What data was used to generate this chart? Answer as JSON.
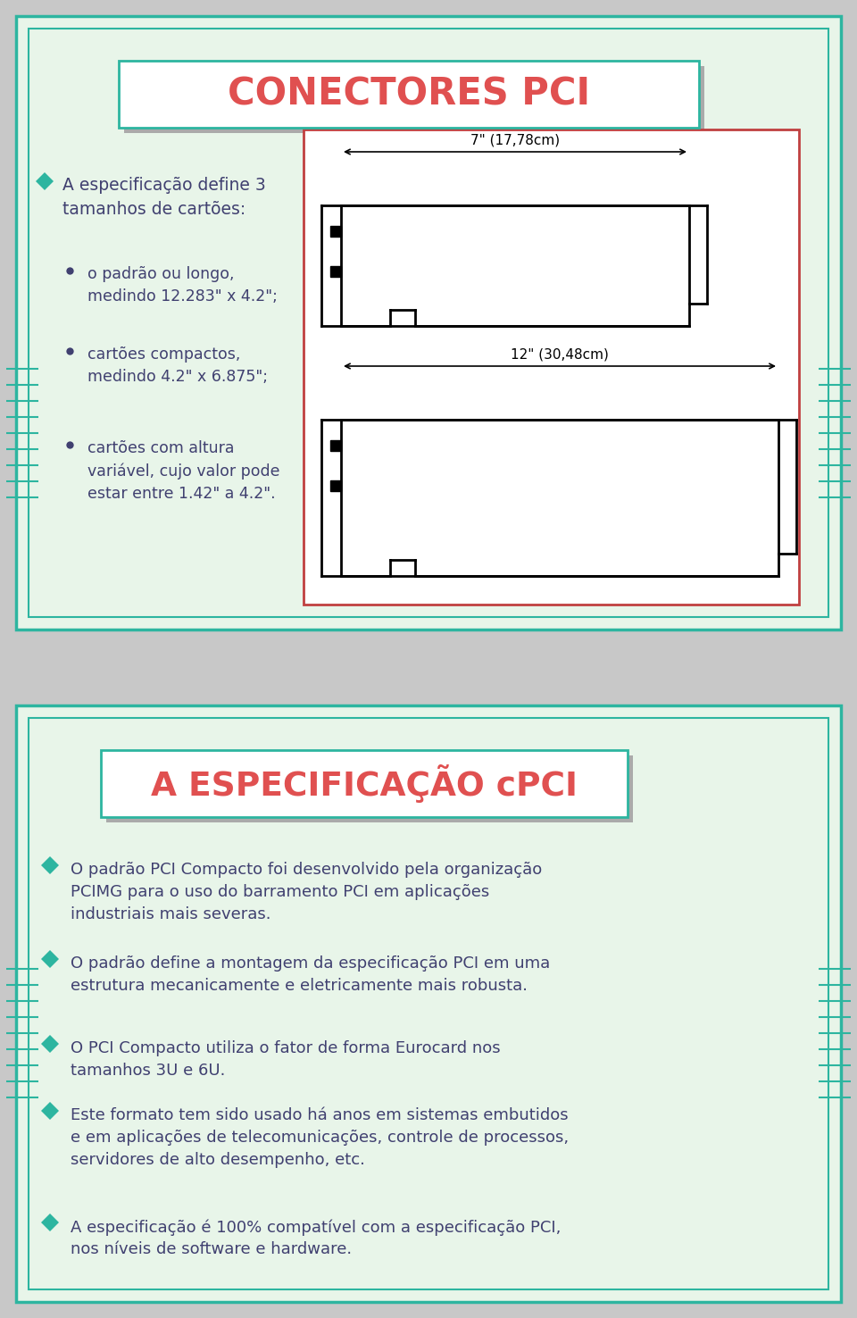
{
  "page_bg": "#c8c8c8",
  "slide_bg": "#e8f5e9",
  "border_color_dark": "#2db5a0",
  "title_box_bg": "#ffffff",
  "title_box_border": "#2db5a0",
  "title1": "CONECTORES PCI",
  "title2": "A ESPECIFICAÇÃO cPCI",
  "title_color": "#e05050",
  "diagram_border": "#c04040",
  "text_color": "#404070",
  "bullet_color": "#2db5a0",
  "stripe_color": "#2db5a0",
  "outer_border": "#303060",
  "shadow_color": "#aaaaaa",
  "slide1_bullet_main": "A especificação define 3\ntamanhos de cartões:",
  "slide1_sub1": "o padrão ou longo,\nmedindo 12.283\" x 4.2\";",
  "slide1_sub2": "cartões compactos,\nmedindo 4.2\" x 6.875\";",
  "slide1_sub3": "cartões com altura\nvariável, cujo valor pode\nestar entre 1.42\" a 4.2\".",
  "slide2_bullets": [
    "O padrão PCI Compacto foi desenvolvido pela organização\nPCIMG para o uso do barramento PCI em aplicações\nindustriais mais severas.",
    "O padrão define a montagem da especificação PCI em uma\nestrutura mecanicamente e eletricamente mais robusta.",
    "O PCI Compacto utiliza o fator de forma Eurocard nos\ntamanhos 3U e 6U.",
    "Este formato tem sido usado há anos em sistemas embutidos\ne em aplicações de telecomunicações, controle de processos,\nservidores de alto desempenho, etc.",
    "A especificação é 100% compatível com a especificação PCI,\nnos níveis de software e hardware."
  ],
  "dim1_label": "7\" (17,78cm)",
  "dim2_label": "12\" (30,48cm)"
}
